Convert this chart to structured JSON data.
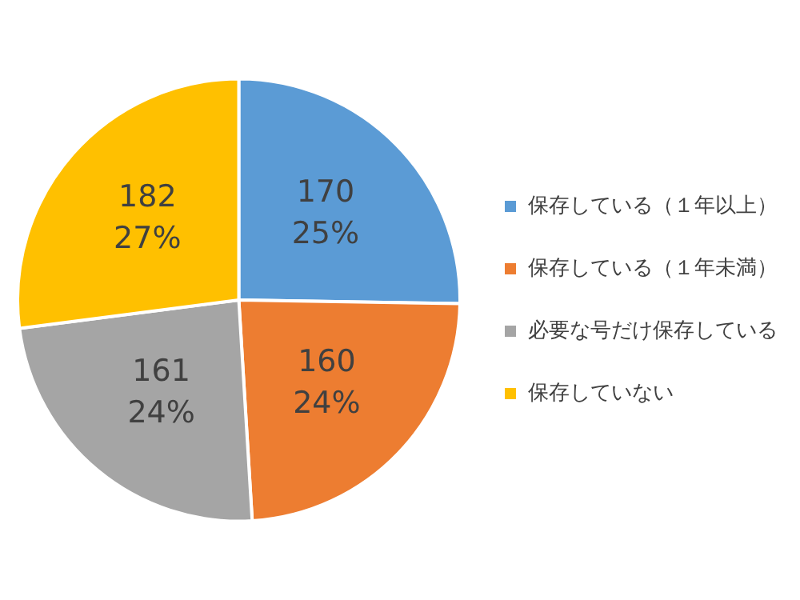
{
  "chart_data": {
    "type": "pie",
    "categories": [
      "保存している（１年以上）",
      "保存している（１年未満）",
      "必要な号だけ保存している",
      "保存していない"
    ],
    "values": [
      170,
      160,
      161,
      182
    ],
    "colors": [
      "#5b9bd5",
      "#ed7d31",
      "#a5a5a5",
      "#ffc000"
    ],
    "value_labels": [
      "170\n25%",
      "160\n24%",
      "161\n24%",
      "182\n27%"
    ],
    "legend": "right"
  }
}
